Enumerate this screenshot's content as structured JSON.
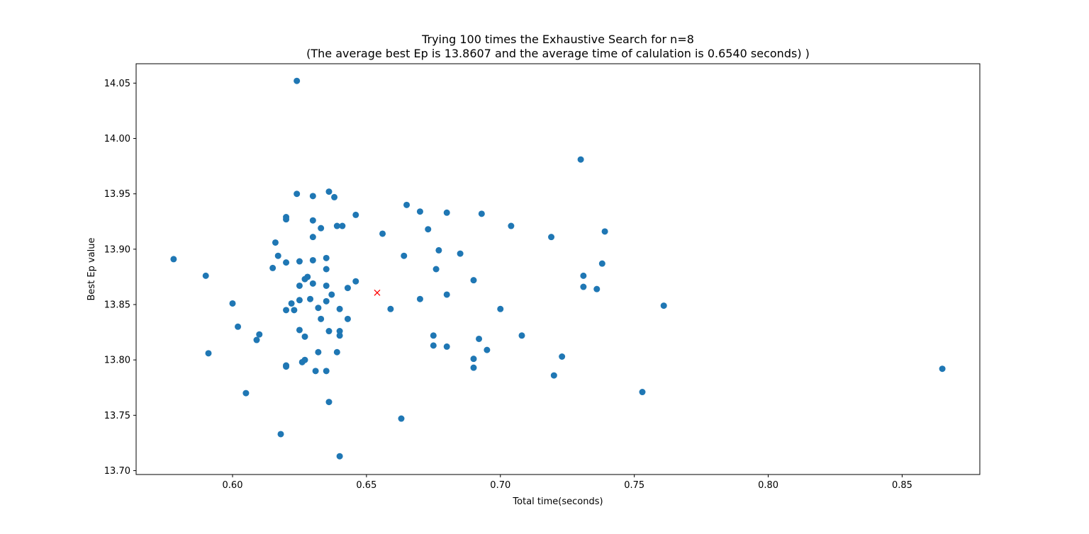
{
  "chart_data": {
    "type": "scatter",
    "title_line1": "Trying 100 times the Exhaustive Search for n=8",
    "title_line2": "(The average best Ep is 13.8607 and the average time of calulation is 0.6540 seconds) )",
    "xlabel": "Total time(seconds)",
    "ylabel": "Best Ep value",
    "xlim": [
      0.564,
      0.879
    ],
    "ylim": [
      13.6965,
      14.0675
    ],
    "x_ticks": [
      {
        "value": 0.6,
        "label": "0.60"
      },
      {
        "value": 0.65,
        "label": "0.65"
      },
      {
        "value": 0.7,
        "label": "0.70"
      },
      {
        "value": 0.75,
        "label": "0.75"
      },
      {
        "value": 0.8,
        "label": "0.80"
      },
      {
        "value": 0.85,
        "label": "0.85"
      }
    ],
    "y_ticks": [
      {
        "value": 13.7,
        "label": "13.70"
      },
      {
        "value": 13.75,
        "label": "13.75"
      },
      {
        "value": 13.8,
        "label": "13.80"
      },
      {
        "value": 13.85,
        "label": "13.85"
      },
      {
        "value": 13.9,
        "label": "13.90"
      },
      {
        "value": 13.95,
        "label": "13.95"
      },
      {
        "value": 14.0,
        "label": "14.00"
      },
      {
        "value": 14.05,
        "label": "14.05"
      }
    ],
    "grid": false,
    "series": [
      {
        "marker": "circle",
        "color": "#1f77b4",
        "points": [
          [
            0.624,
            14.052
          ],
          [
            0.73,
            13.981
          ],
          [
            0.624,
            13.95
          ],
          [
            0.63,
            13.948
          ],
          [
            0.636,
            13.952
          ],
          [
            0.638,
            13.947
          ],
          [
            0.665,
            13.94
          ],
          [
            0.67,
            13.934
          ],
          [
            0.68,
            13.933
          ],
          [
            0.693,
            13.932
          ],
          [
            0.62,
            13.929
          ],
          [
            0.62,
            13.927
          ],
          [
            0.63,
            13.926
          ],
          [
            0.646,
            13.931
          ],
          [
            0.633,
            13.919
          ],
          [
            0.639,
            13.921
          ],
          [
            0.641,
            13.921
          ],
          [
            0.656,
            13.914
          ],
          [
            0.673,
            13.918
          ],
          [
            0.704,
            13.921
          ],
          [
            0.739,
            13.916
          ],
          [
            0.63,
            13.911
          ],
          [
            0.719,
            13.911
          ],
          [
            0.616,
            13.906
          ],
          [
            0.617,
            13.894
          ],
          [
            0.62,
            13.888
          ],
          [
            0.625,
            13.889
          ],
          [
            0.63,
            13.89
          ],
          [
            0.635,
            13.892
          ],
          [
            0.664,
            13.894
          ],
          [
            0.677,
            13.899
          ],
          [
            0.685,
            13.896
          ],
          [
            0.738,
            13.887
          ],
          [
            0.578,
            13.891
          ],
          [
            0.615,
            13.883
          ],
          [
            0.635,
            13.882
          ],
          [
            0.676,
            13.882
          ],
          [
            0.59,
            13.876
          ],
          [
            0.628,
            13.875
          ],
          [
            0.627,
            13.873
          ],
          [
            0.63,
            13.869
          ],
          [
            0.625,
            13.867
          ],
          [
            0.635,
            13.867
          ],
          [
            0.643,
            13.865
          ],
          [
            0.646,
            13.871
          ],
          [
            0.69,
            13.872
          ],
          [
            0.731,
            13.876
          ],
          [
            0.731,
            13.866
          ],
          [
            0.736,
            13.864
          ],
          [
            0.637,
            13.859
          ],
          [
            0.68,
            13.859
          ],
          [
            0.625,
            13.854
          ],
          [
            0.629,
            13.855
          ],
          [
            0.635,
            13.853
          ],
          [
            0.67,
            13.855
          ],
          [
            0.6,
            13.851
          ],
          [
            0.622,
            13.851
          ],
          [
            0.62,
            13.845
          ],
          [
            0.623,
            13.845
          ],
          [
            0.632,
            13.847
          ],
          [
            0.64,
            13.846
          ],
          [
            0.659,
            13.846
          ],
          [
            0.7,
            13.846
          ],
          [
            0.761,
            13.849
          ],
          [
            0.633,
            13.837
          ],
          [
            0.643,
            13.837
          ],
          [
            0.602,
            13.83
          ],
          [
            0.61,
            13.823
          ],
          [
            0.609,
            13.818
          ],
          [
            0.625,
            13.827
          ],
          [
            0.627,
            13.821
          ],
          [
            0.636,
            13.826
          ],
          [
            0.64,
            13.826
          ],
          [
            0.64,
            13.822
          ],
          [
            0.675,
            13.822
          ],
          [
            0.692,
            13.819
          ],
          [
            0.708,
            13.822
          ],
          [
            0.675,
            13.813
          ],
          [
            0.68,
            13.812
          ],
          [
            0.591,
            13.806
          ],
          [
            0.632,
            13.807
          ],
          [
            0.639,
            13.807
          ],
          [
            0.69,
            13.801
          ],
          [
            0.695,
            13.809
          ],
          [
            0.723,
            13.803
          ],
          [
            0.62,
            13.795
          ],
          [
            0.62,
            13.794
          ],
          [
            0.626,
            13.798
          ],
          [
            0.627,
            13.8
          ],
          [
            0.631,
            13.79
          ],
          [
            0.635,
            13.79
          ],
          [
            0.69,
            13.793
          ],
          [
            0.72,
            13.786
          ],
          [
            0.865,
            13.792
          ],
          [
            0.605,
            13.77
          ],
          [
            0.753,
            13.771
          ],
          [
            0.636,
            13.762
          ],
          [
            0.663,
            13.747
          ],
          [
            0.618,
            13.733
          ],
          [
            0.64,
            13.713
          ]
        ]
      },
      {
        "marker": "x",
        "color": "#ff0000",
        "points": [
          [
            0.654,
            13.8607
          ]
        ]
      }
    ]
  }
}
